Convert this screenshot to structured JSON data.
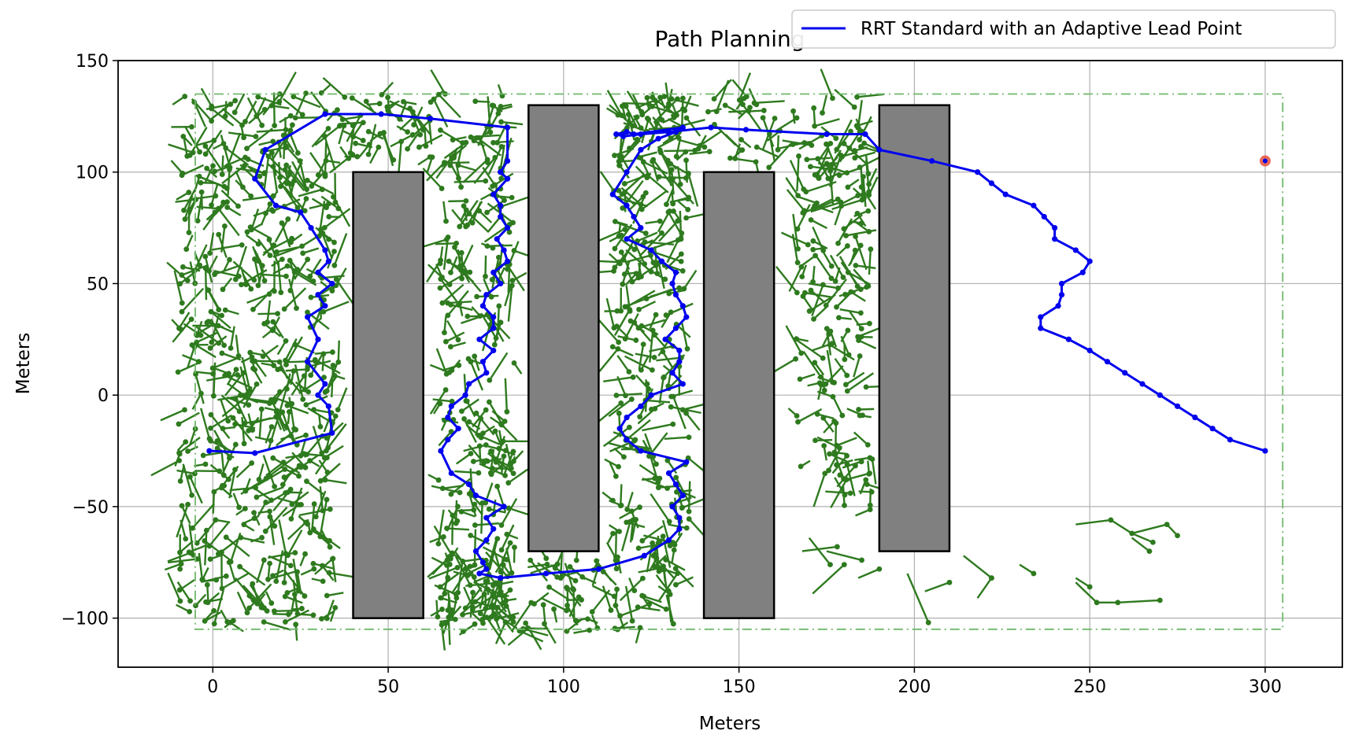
{
  "chart_data": {
    "type": "scatter",
    "title": "Path Planning",
    "xlabel": "Meters",
    "ylabel": "Meters",
    "xlim": [
      -27,
      322
    ],
    "ylim": [
      -122,
      150
    ],
    "xticks": [
      0,
      50,
      100,
      150,
      200,
      250,
      300
    ],
    "yticks": [
      -100,
      -50,
      0,
      50,
      100,
      150
    ],
    "xtick_labels": [
      "0",
      "50",
      "100",
      "150",
      "200",
      "250",
      "300"
    ],
    "ytick_labels": [
      "−100",
      "−50",
      "0",
      "50",
      "100",
      "150"
    ],
    "grid": true,
    "legend": {
      "placement": "top-right",
      "entries": [
        "RRT Standard with an Adaptive Lead Point"
      ]
    },
    "colors": {
      "path": "#0000ee",
      "tree": "#2e7a1e",
      "obstacle": "#808080",
      "boundary": "#6fb86a",
      "goal": "#e8503a"
    },
    "boundary": {
      "x": [
        -5,
        305
      ],
      "y": [
        -105,
        135
      ]
    },
    "obstacles": [
      {
        "x": [
          40,
          60
        ],
        "y": [
          -100,
          100
        ]
      },
      {
        "x": [
          90,
          110
        ],
        "y": [
          -70,
          130
        ]
      },
      {
        "x": [
          140,
          160
        ],
        "y": [
          -100,
          100
        ]
      },
      {
        "x": [
          190,
          210
        ],
        "y": [
          -70,
          130
        ]
      }
    ],
    "goal": {
      "x": 300,
      "y": 105
    },
    "series": [
      {
        "name": "RRT Standard with an Adaptive Lead Point",
        "type": "line",
        "x": [
          -1,
          12,
          34,
          33,
          30,
          32,
          27,
          30,
          27,
          32,
          30,
          34,
          30,
          33,
          32,
          28,
          25,
          18,
          12,
          15,
          32,
          48,
          62,
          84,
          84,
          82,
          84,
          80,
          82,
          82,
          84,
          81,
          83,
          84,
          80,
          82,
          78,
          77,
          80,
          80,
          76,
          80,
          77,
          78,
          73,
          72,
          68,
          67,
          70,
          67,
          65,
          68,
          73,
          75,
          83,
          78,
          80,
          78,
          75,
          77,
          78,
          76,
          82,
          95,
          110,
          123,
          130,
          133,
          133,
          131,
          134,
          132,
          130,
          135,
          122,
          118,
          116,
          118,
          122,
          125,
          134,
          131,
          133,
          133,
          129,
          132,
          135,
          134,
          132,
          131,
          132,
          128,
          125,
          118,
          122,
          120,
          118,
          114,
          118,
          122,
          127,
          132,
          134,
          120,
          118,
          115,
          117,
          122,
          130,
          142,
          152,
          175,
          186,
          190,
          205,
          218,
          222,
          226,
          234,
          237,
          240,
          240,
          246,
          250,
          248,
          242,
          242,
          241,
          236,
          236,
          244,
          250,
          255,
          260,
          265,
          270,
          275,
          280,
          285,
          290,
          300
        ],
        "y": [
          -25,
          -26,
          -17,
          -5,
          0,
          5,
          15,
          25,
          35,
          40,
          45,
          50,
          55,
          60,
          65,
          75,
          82,
          85,
          97,
          110,
          126,
          126,
          124,
          120,
          105,
          100,
          97,
          90,
          85,
          80,
          75,
          70,
          65,
          60,
          55,
          50,
          45,
          40,
          35,
          30,
          25,
          20,
          15,
          10,
          5,
          0,
          -5,
          -10,
          -15,
          -20,
          -25,
          -35,
          -40,
          -45,
          -50,
          -55,
          -60,
          -65,
          -70,
          -75,
          -78,
          -80,
          -82,
          -80,
          -78,
          -72,
          -65,
          -60,
          -55,
          -50,
          -45,
          -40,
          -35,
          -30,
          -25,
          -20,
          -15,
          -10,
          -5,
          0,
          5,
          10,
          15,
          20,
          25,
          30,
          35,
          40,
          45,
          50,
          55,
          60,
          65,
          70,
          75,
          80,
          85,
          90,
          100,
          110,
          115,
          118,
          120,
          117,
          118,
          117,
          116,
          117,
          118,
          120,
          119,
          117,
          117,
          110,
          105,
          100,
          95,
          90,
          85,
          80,
          75,
          70,
          65,
          60,
          55,
          50,
          45,
          40,
          35,
          30,
          25,
          20,
          15,
          10,
          5,
          0,
          -5,
          -10,
          -15,
          -20,
          -25
        ]
      }
    ]
  }
}
